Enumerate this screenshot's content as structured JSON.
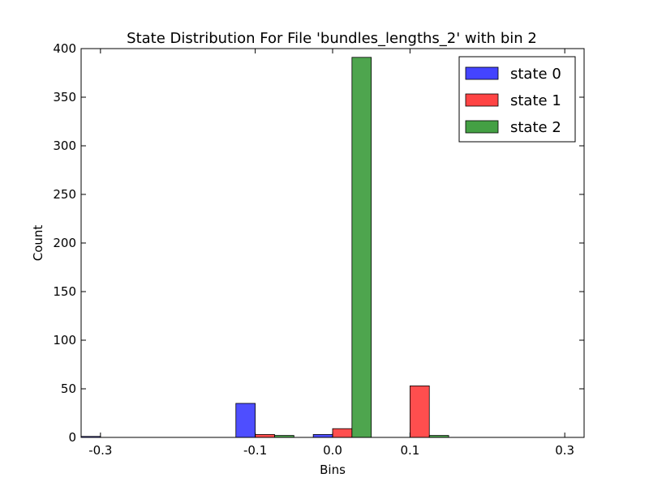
{
  "chart_data": {
    "type": "bar",
    "title": "State Distribution For File 'bundles_lengths_2' with bin 2",
    "xlabel": "Bins",
    "ylabel": "Count",
    "ylim": [
      0,
      400
    ],
    "xlim": [
      -0.325,
      0.325
    ],
    "bar_width": 0.025,
    "yticks": [
      0,
      50,
      100,
      150,
      200,
      250,
      300,
      350,
      400
    ],
    "xticks": [
      {
        "label": "-0.3",
        "value": -0.3
      },
      {
        "label": "-0.1",
        "value": -0.1
      },
      {
        "label": "0.0",
        "value": 0.0
      },
      {
        "label": "0.1",
        "value": 0.1
      },
      {
        "label": "0.3",
        "value": 0.3
      }
    ],
    "bin_starts": [
      -0.325,
      -0.225,
      -0.125,
      -0.025,
      0.075,
      0.175
    ],
    "series": [
      {
        "name": "state 0",
        "color": "#4444ff",
        "values": [
          1,
          0,
          35,
          3,
          0,
          0
        ]
      },
      {
        "name": "state 1",
        "color": "#ff4444",
        "values": [
          0,
          0,
          3,
          9,
          53,
          0
        ]
      },
      {
        "name": "state 2",
        "color": "#44a044",
        "values": [
          0,
          0,
          2,
          391,
          2,
          0
        ]
      }
    ],
    "legend_position": "top-right",
    "grid": false
  }
}
